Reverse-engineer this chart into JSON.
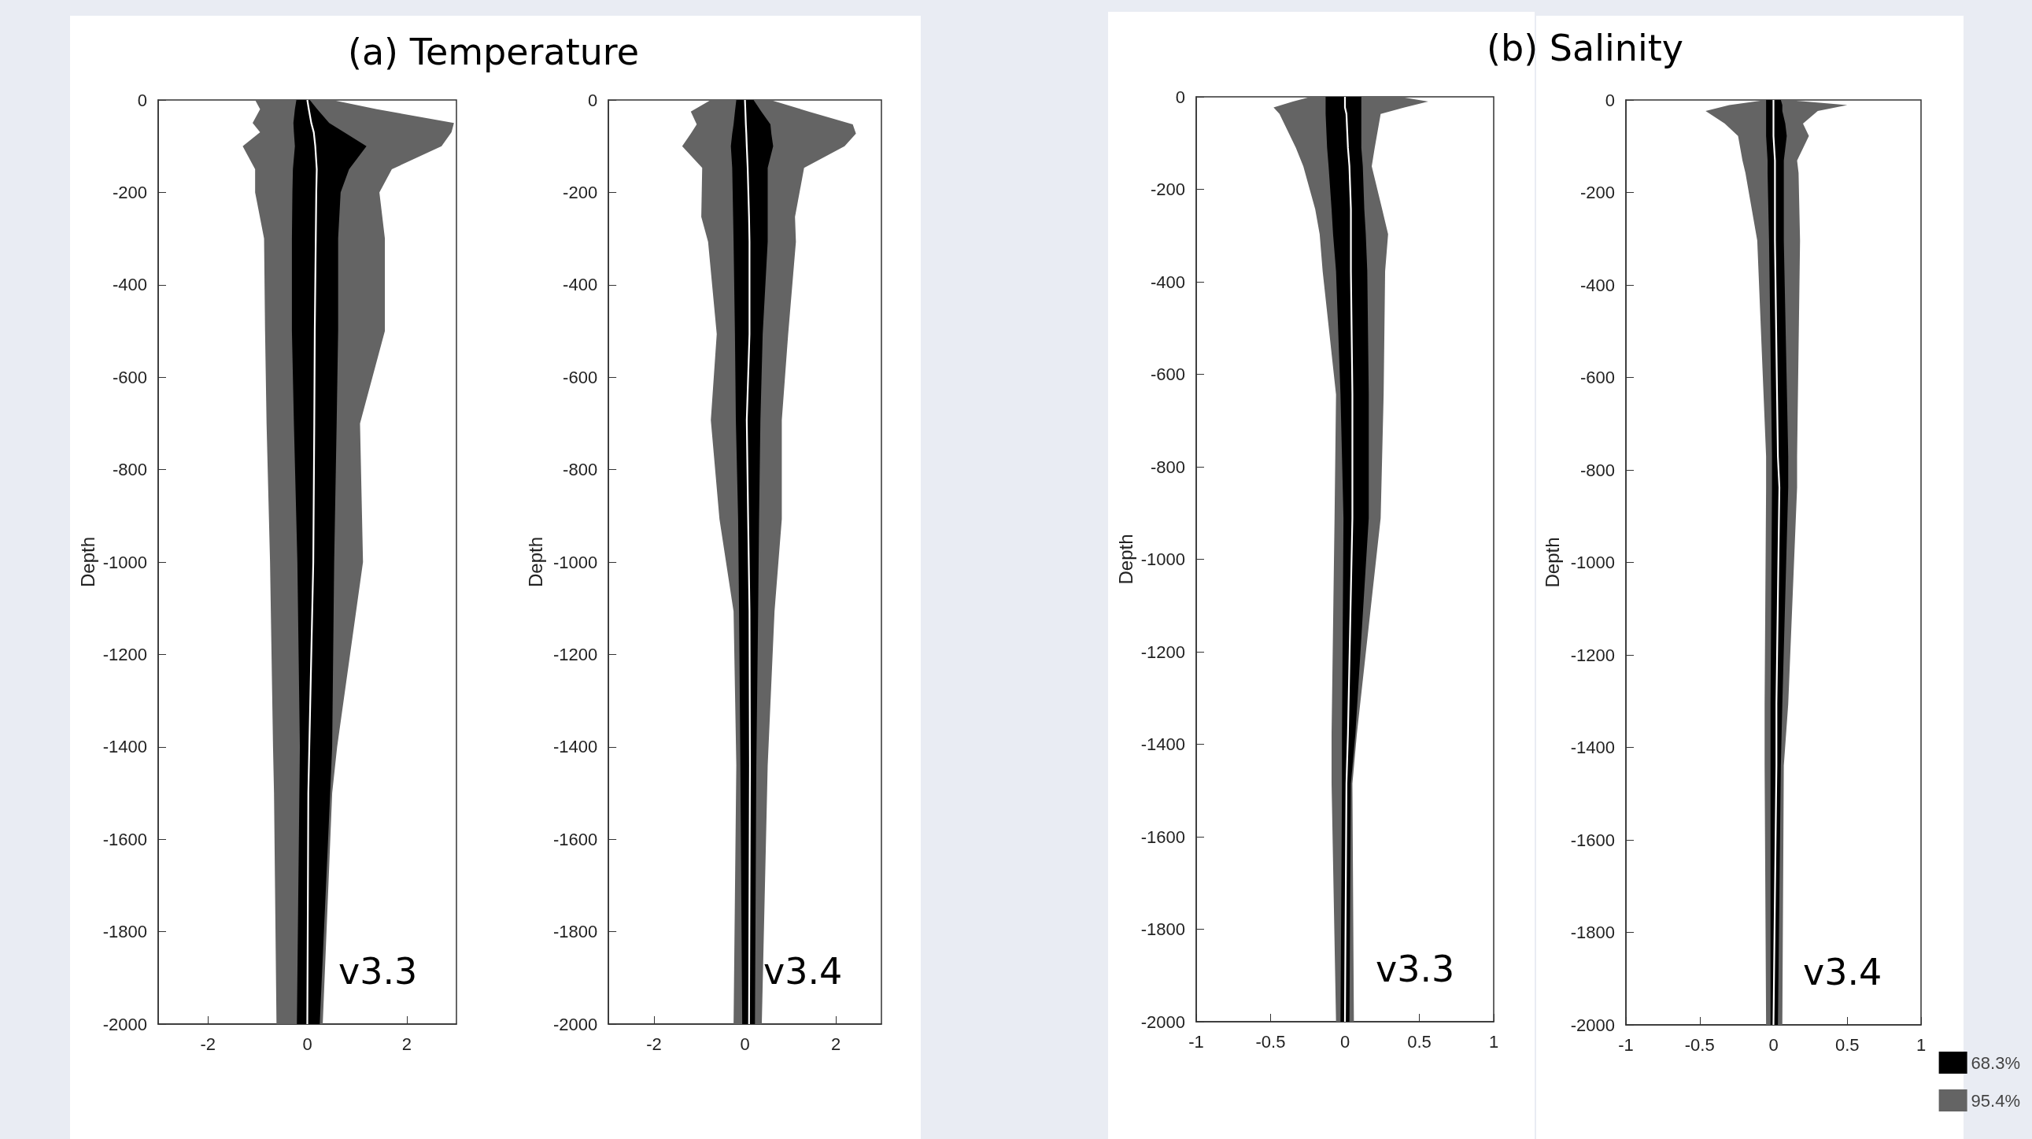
{
  "chart_data": [
    {
      "type": "line",
      "title": "(a) Temperature",
      "ylabel": "Depth",
      "orientation": "horizontal",
      "xlim": [
        -3,
        3
      ],
      "xticks": [
        -2,
        0,
        2
      ],
      "ylim": [
        -2000,
        0
      ],
      "yticks": [
        0,
        -200,
        -400,
        -600,
        -800,
        -1000,
        -1200,
        -1400,
        -1600,
        -1800,
        -2000
      ],
      "annotations": [
        "v3.3"
      ],
      "x": [
        0,
        -20,
        -50,
        -70,
        -100,
        -150,
        -200,
        -300,
        -500,
        -700,
        -1000,
        -1400,
        -1500,
        -2000
      ],
      "series": [
        {
          "color": "#646464",
          "values": [
            null,
            null,
            null,
            null,
            null,
            null,
            null,
            null,
            null,
            null,
            null,
            null,
            null,
            null
          ],
          "lower": [
            -1.05,
            -0.95,
            -1.1,
            -0.95,
            -1.3,
            -1.05,
            -1.05,
            -0.87,
            -0.85,
            -0.82,
            -0.75,
            -0.69,
            -0.67,
            -0.62
          ],
          "upper": [
            0.5,
            1.4,
            2.95,
            2.9,
            2.7,
            1.7,
            1.45,
            1.56,
            1.56,
            1.06,
            1.12,
            0.6,
            0.5,
            0.31
          ]
        },
        {
          "color": "#000000",
          "values": [
            null,
            null,
            null,
            null,
            null,
            null,
            null,
            null,
            null,
            null,
            null,
            null,
            null,
            null
          ],
          "lower": [
            -0.22,
            -0.25,
            -0.28,
            -0.27,
            -0.25,
            -0.29,
            -0.3,
            -0.31,
            -0.31,
            -0.27,
            -0.2,
            -0.15,
            -0.16,
            -0.21
          ],
          "upper": [
            0.05,
            0.2,
            0.44,
            0.74,
            1.19,
            0.84,
            0.67,
            0.62,
            0.62,
            0.59,
            0.54,
            0.5,
            0.46,
            0.25
          ]
        },
        {
          "color": "#ffffff",
          "values": [
            0,
            0.03,
            0.08,
            0.13,
            0.16,
            0.19,
            0.18,
            0.17,
            0.15,
            0.14,
            0.12,
            0.04,
            0.02,
            0
          ]
        }
      ]
    },
    {
      "type": "line",
      "ylabel": "Depth",
      "orientation": "horizontal",
      "xlim": [
        -3,
        3
      ],
      "xticks": [
        -2,
        0,
        2
      ],
      "ylim": [
        -2000,
        0
      ],
      "yticks": [
        0,
        -200,
        -400,
        -600,
        -800,
        -1000,
        -1200,
        -1400,
        -1600,
        -1800,
        -2000
      ],
      "annotations": [
        "v3.4"
      ],
      "x": [
        0,
        -25,
        -53,
        -73,
        -100,
        -147,
        -253,
        -307,
        -507,
        -693,
        -907,
        -1107,
        -1440,
        -2000
      ],
      "series": [
        {
          "color": "#646464",
          "values": [
            null,
            null,
            null,
            null,
            null,
            null,
            null,
            null,
            null,
            null,
            null,
            null,
            null,
            null
          ],
          "lower": [
            -0.75,
            -1.19,
            -1.06,
            -1.19,
            -1.38,
            -0.94,
            -0.96,
            -0.81,
            -0.62,
            -0.75,
            -0.56,
            -0.25,
            -0.19,
            -0.25
          ],
          "upper": [
            0.56,
            1.4,
            2.37,
            2.44,
            2.19,
            1.3,
            1.1,
            1.12,
            0.95,
            0.81,
            0.81,
            0.65,
            0.5,
            0.37
          ]
        },
        {
          "color": "#000000",
          "values": [
            null,
            null,
            null,
            null,
            null,
            null,
            null,
            null,
            null,
            null,
            null,
            null,
            null,
            null
          ],
          "lower": [
            -0.19,
            -0.22,
            -0.25,
            -0.28,
            -0.31,
            -0.28,
            -0.26,
            -0.25,
            -0.22,
            -0.2,
            -0.15,
            -0.13,
            -0.1,
            -0.06
          ],
          "upper": [
            0.19,
            0.36,
            0.56,
            0.58,
            0.62,
            0.5,
            0.5,
            0.5,
            0.39,
            0.34,
            0.31,
            0.29,
            0.25,
            0.22
          ]
        },
        {
          "color": "#ffffff",
          "values": [
            0,
            0.01,
            0.02,
            0.03,
            0.04,
            0.06,
            0.09,
            0.1,
            0.1,
            0.04,
            0.07,
            0.1,
            0.11,
            0.09
          ]
        }
      ]
    },
    {
      "type": "line",
      "title": "(b) Salinity",
      "ylabel": "Depth",
      "orientation": "horizontal",
      "xlim": [
        -1,
        1
      ],
      "xticks": [
        -1,
        -0.5,
        0,
        0.5,
        1
      ],
      "ylim": [
        -2000,
        0
      ],
      "yticks": [
        0,
        -200,
        -400,
        -600,
        -800,
        -1000,
        -1200,
        -1400,
        -1600,
        -1800,
        -2000
      ],
      "annotations": [
        "v3.3"
      ],
      "x": [
        0,
        -10,
        -23,
        -37,
        -110,
        -150,
        -243,
        -297,
        -377,
        -644,
        -911,
        -1378,
        -1485,
        -2000
      ],
      "series": [
        {
          "color": "#646464",
          "values": [
            null,
            null,
            null,
            null,
            null,
            null,
            null,
            null,
            null,
            null,
            null,
            null,
            null,
            null
          ],
          "lower": [
            -0.23,
            -0.35,
            -0.48,
            -0.44,
            -0.33,
            -0.28,
            -0.2,
            -0.17,
            -0.15,
            -0.06,
            -0.07,
            -0.09,
            -0.09,
            -0.06
          ],
          "upper": [
            0.37,
            0.56,
            0.4,
            0.24,
            0.2,
            0.18,
            0.25,
            0.29,
            0.27,
            0.26,
            0.24,
            0.08,
            0.05,
            0.06
          ]
        },
        {
          "color": "#000000",
          "values": [
            null,
            null,
            null,
            null,
            null,
            null,
            null,
            null,
            null,
            null,
            null,
            null,
            null,
            null
          ],
          "lower": [
            -0.13,
            -0.13,
            -0.13,
            -0.13,
            -0.12,
            -0.11,
            -0.09,
            -0.08,
            -0.06,
            -0.03,
            -0.01,
            -0.02,
            -0.02,
            -0.03
          ],
          "upper": [
            0.11,
            0.11,
            0.11,
            0.11,
            0.11,
            0.12,
            0.13,
            0.14,
            0.15,
            0.16,
            0.16,
            0.07,
            0.04,
            0.03
          ]
        },
        {
          "color": "#ffffff",
          "values": [
            0,
            0,
            0,
            0.01,
            0.02,
            0.03,
            0.04,
            0.04,
            0.04,
            0.05,
            0.05,
            0.02,
            0.01,
            0
          ]
        }
      ]
    },
    {
      "type": "line",
      "ylabel": "Depth",
      "orientation": "horizontal",
      "xlim": [
        -1,
        1
      ],
      "xticks": [
        -1,
        -0.5,
        0,
        0.5,
        1
      ],
      "ylim": [
        -2000,
        0
      ],
      "yticks": [
        0,
        -200,
        -400,
        -600,
        -800,
        -1000,
        -1200,
        -1400,
        -1600,
        -1800,
        -2000
      ],
      "annotations": [
        "v3.4"
      ],
      "legend": "bottom right",
      "x": [
        0,
        -11,
        -24,
        -51,
        -78,
        -131,
        -158,
        -304,
        -771,
        -838,
        -1306,
        -1439,
        -2000
      ],
      "series": [
        {
          "name": "95.4%",
          "color": "#646464",
          "values": [
            null,
            null,
            null,
            null,
            null,
            null,
            null,
            null,
            null,
            null,
            null,
            null,
            null
          ],
          "lower": [
            -0.05,
            -0.3,
            -0.46,
            -0.33,
            -0.24,
            -0.21,
            -0.19,
            -0.11,
            -0.05,
            -0.05,
            -0.06,
            -0.06,
            -0.05
          ],
          "upper": [
            0.09,
            0.5,
            0.3,
            0.2,
            0.24,
            0.16,
            0.17,
            0.18,
            0.16,
            0.16,
            0.1,
            0.07,
            0.06
          ]
        },
        {
          "name": "68.3%",
          "color": "#000000",
          "values": [
            null,
            null,
            null,
            null,
            null,
            null,
            null,
            null,
            null,
            null,
            null,
            null,
            null
          ],
          "lower": [
            -0.05,
            -0.05,
            -0.05,
            -0.05,
            -0.05,
            -0.04,
            -0.04,
            -0.03,
            -0.01,
            -0.01,
            -0.02,
            -0.02,
            -0.02
          ],
          "upper": [
            0.05,
            0.06,
            0.06,
            0.08,
            0.09,
            0.07,
            0.07,
            0.07,
            0.1,
            0.1,
            0.06,
            0.05,
            0.03
          ]
        },
        {
          "color": "#ffffff",
          "values": [
            0,
            0,
            0,
            0,
            0,
            0.01,
            0.01,
            0.01,
            0.03,
            0.04,
            0.02,
            0.02,
            0
          ]
        }
      ]
    }
  ]
}
